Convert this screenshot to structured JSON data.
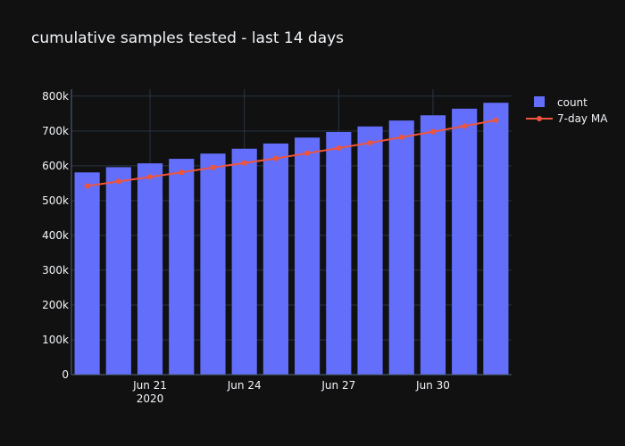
{
  "chart_data": {
    "type": "bar",
    "title": "cumulative samples tested - last 14 days",
    "xlabel": "",
    "ylabel": "",
    "x": [
      "2020-06-19",
      "2020-06-20",
      "2020-06-21",
      "2020-06-22",
      "2020-06-23",
      "2020-06-24",
      "2020-06-25",
      "2020-06-26",
      "2020-06-27",
      "2020-06-28",
      "2020-06-29",
      "2020-06-30",
      "2020-07-01",
      "2020-07-02"
    ],
    "x_ticks": [
      {
        "date": "2020-06-21",
        "label": "Jun 21",
        "sublabel": "2020"
      },
      {
        "date": "2020-06-24",
        "label": "Jun 24",
        "sublabel": ""
      },
      {
        "date": "2020-06-27",
        "label": "Jun 27",
        "sublabel": ""
      },
      {
        "date": "2020-06-30",
        "label": "Jun 30",
        "sublabel": ""
      }
    ],
    "ylim": [
      0,
      820000
    ],
    "y_ticks": [
      {
        "value": 0,
        "label": "0"
      },
      {
        "value": 100000,
        "label": "100k"
      },
      {
        "value": 200000,
        "label": "200k"
      },
      {
        "value": 300000,
        "label": "300k"
      },
      {
        "value": 400000,
        "label": "400k"
      },
      {
        "value": 500000,
        "label": "500k"
      },
      {
        "value": 600000,
        "label": "600k"
      },
      {
        "value": 700000,
        "label": "700k"
      },
      {
        "value": 800000,
        "label": "800k"
      }
    ],
    "grid": true,
    "legend_position": "top-right",
    "series": [
      {
        "name": "count",
        "type": "bar",
        "color": "#636efa",
        "values": [
          581000,
          596000,
          607000,
          620000,
          635000,
          649000,
          664000,
          681000,
          697000,
          713000,
          730000,
          745000,
          764000,
          781000
        ]
      },
      {
        "name": "7-day MA",
        "type": "line",
        "color": "#ef553b",
        "values": [
          542000,
          555000,
          568000,
          581000,
          595000,
          608000,
          621000,
          636000,
          651000,
          666000,
          682000,
          698000,
          714000,
          731000
        ]
      }
    ]
  }
}
